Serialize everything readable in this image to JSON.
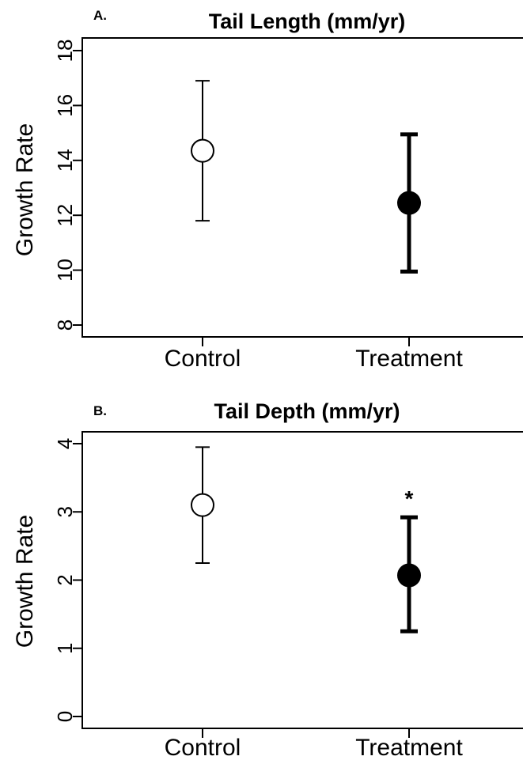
{
  "chart_data": [
    {
      "type": "scatter",
      "panel_label": "A.",
      "title": "Tail Length (mm/yr)",
      "ylabel": "Growth Rate",
      "categories": [
        "Control",
        "Treatment"
      ],
      "ylim": [
        7.5,
        18.5
      ],
      "yticks": [
        8,
        10,
        12,
        14,
        16,
        18
      ],
      "series": [
        {
          "category": "Control",
          "mean": 14.35,
          "lower": 11.8,
          "upper": 16.9,
          "style": "open",
          "color": "#000000"
        },
        {
          "category": "Treatment",
          "mean": 12.45,
          "lower": 9.95,
          "upper": 14.95,
          "style": "filled",
          "color": "#000000"
        }
      ],
      "annotations": []
    },
    {
      "type": "scatter",
      "panel_label": "B.",
      "title": "Tail Depth (mm/yr)",
      "ylabel": "Growth Rate",
      "categories": [
        "Control",
        "Treatment"
      ],
      "ylim": [
        -0.15,
        4.15
      ],
      "yticks": [
        0,
        1,
        2,
        3,
        4
      ],
      "series": [
        {
          "category": "Control",
          "mean": 3.1,
          "lower": 2.25,
          "upper": 3.95,
          "style": "open",
          "color": "#000000"
        },
        {
          "category": "Treatment",
          "mean": 2.07,
          "lower": 1.25,
          "upper": 2.92,
          "style": "filled",
          "color": "#000000"
        }
      ],
      "annotations": [
        {
          "category": "Treatment",
          "text": "*"
        }
      ]
    }
  ]
}
